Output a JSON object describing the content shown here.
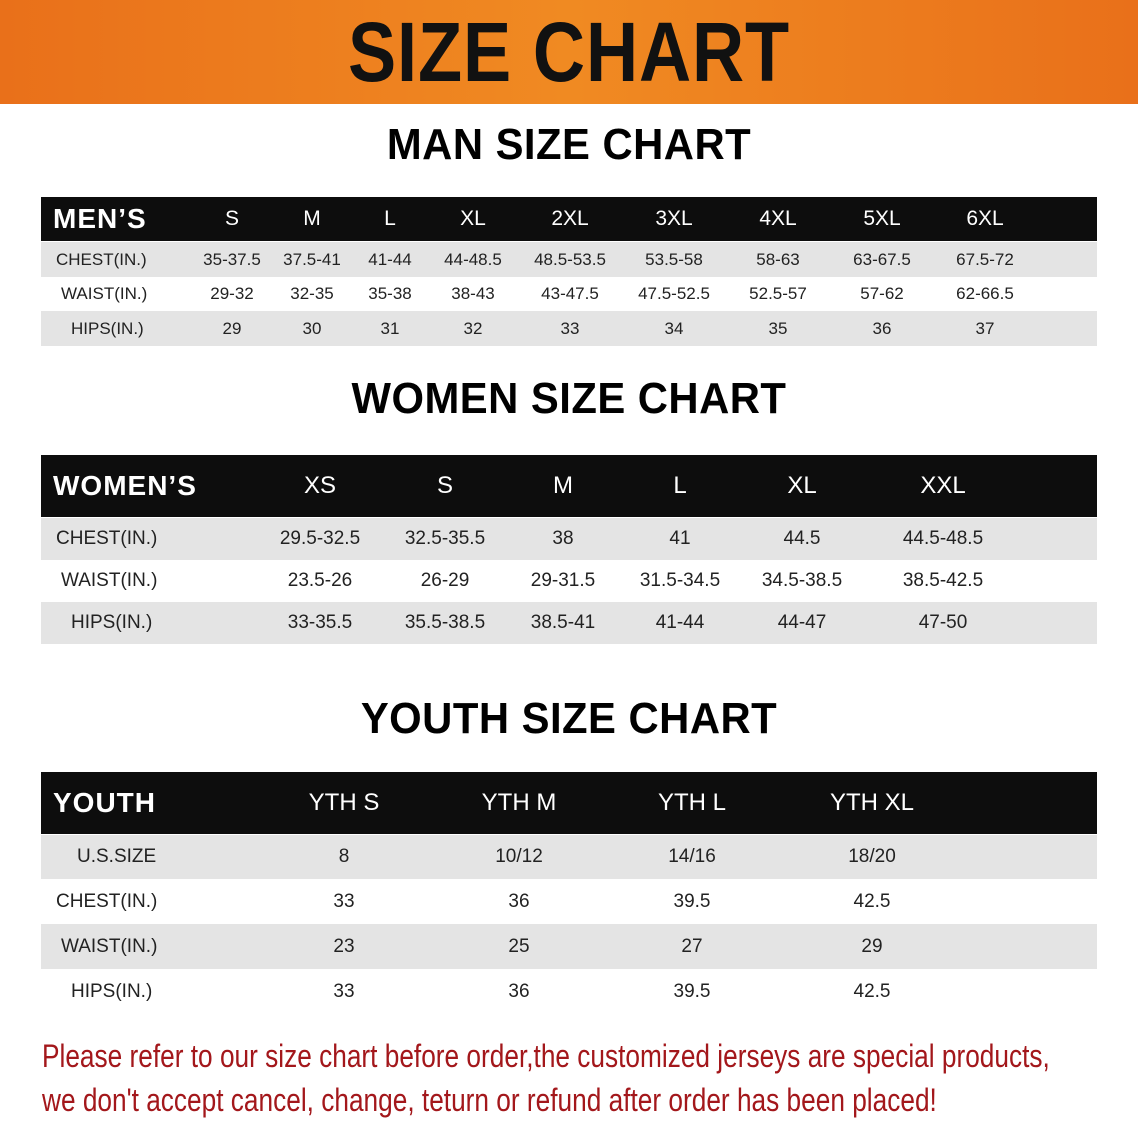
{
  "banner": {
    "title": "SIZE CHART",
    "color": "#ee7d1f"
  },
  "men": {
    "title": "MAN SIZE CHART",
    "header": [
      "MEN’S",
      "S",
      "M",
      "L",
      "XL",
      "2XL",
      "3XL",
      "4XL",
      "5XL",
      "6XL"
    ],
    "rows": [
      [
        "CHEST(IN.)",
        "35-37.5",
        "37.5-41",
        "41-44",
        "44-48.5",
        "48.5-53.5",
        "53.5-58",
        "58-63",
        "63-67.5",
        "67.5-72"
      ],
      [
        "WAIST(IN.)",
        "29-32",
        "32-35",
        "35-38",
        "38-43",
        "43-47.5",
        "47.5-52.5",
        "52.5-57",
        "57-62",
        "62-66.5"
      ],
      [
        "HIPS(IN.)",
        "29",
        "30",
        "31",
        "32",
        "33",
        "34",
        "35",
        "36",
        "37"
      ]
    ]
  },
  "women": {
    "title": "WOMEN SIZE CHART",
    "header": [
      "WOMEN’S",
      "XS",
      "S",
      "M",
      "L",
      "XL",
      "XXL"
    ],
    "rows": [
      [
        "CHEST(IN.)",
        "29.5-32.5",
        "32.5-35.5",
        "38",
        "41",
        "44.5",
        "44.5-48.5"
      ],
      [
        "WAIST(IN.)",
        "23.5-26",
        "26-29",
        "29-31.5",
        "31.5-34.5",
        "34.5-38.5",
        "38.5-42.5"
      ],
      [
        "HIPS(IN.)",
        "33-35.5",
        "35.5-38.5",
        "38.5-41",
        "41-44",
        "44-47",
        "47-50"
      ]
    ]
  },
  "youth": {
    "title": "YOUTH SIZE CHART",
    "header": [
      "YOUTH",
      "YTH S",
      "YTH M",
      "YTH L",
      "YTH XL"
    ],
    "rows": [
      [
        "U.S.SIZE",
        "8",
        "10/12",
        "14/16",
        "18/20"
      ],
      [
        "CHEST(IN.)",
        "33",
        "36",
        "39.5",
        "42.5"
      ],
      [
        "WAIST(IN.)",
        "23",
        "25",
        "27",
        "29"
      ],
      [
        "HIPS(IN.)",
        "33",
        "36",
        "39.5",
        "42.5"
      ]
    ]
  },
  "notice": {
    "line1": "Please refer to our size chart before order,the customized jerseys are special products,",
    "line2": "we don't accept cancel, change, teturn or refund after order has been placed!",
    "color": "#a3171b"
  }
}
